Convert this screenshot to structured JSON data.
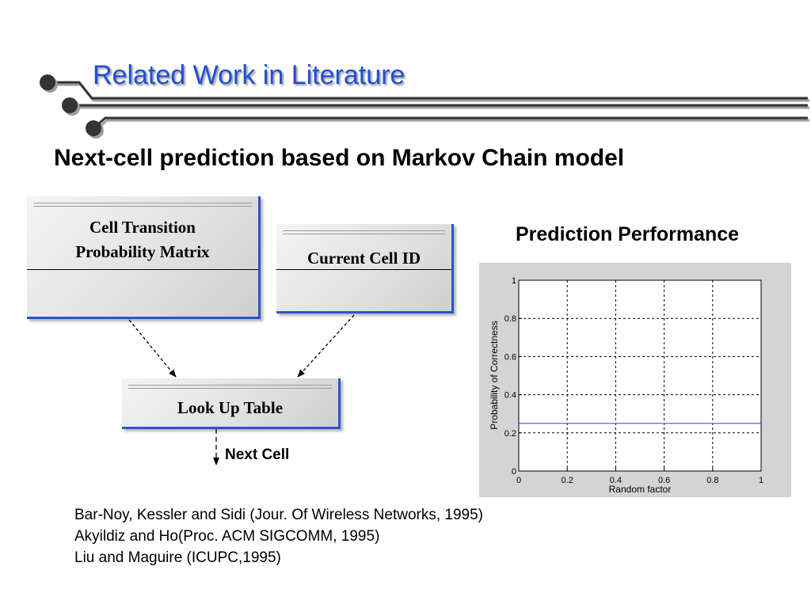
{
  "header": {
    "title": "Related Work in Literature"
  },
  "subtitle": "Next-cell prediction based on Markov Chain model",
  "diagram": {
    "matrix_box": {
      "line1": "Cell Transition",
      "line2": "Probability Matrix"
    },
    "current_cell_box": {
      "label": "Current Cell ID"
    },
    "lookup_box": {
      "label": "Look Up Table"
    },
    "output_label": "Next Cell"
  },
  "chart_title": "Prediction Performance",
  "chart_data": {
    "type": "line",
    "xlabel": "Random factor",
    "ylabel": "Probability of Correctness",
    "xlim": [
      0,
      1
    ],
    "ylim": [
      0,
      1
    ],
    "x_ticks": [
      "0",
      "0.2",
      "0.4",
      "0.6",
      "0.8",
      "1"
    ],
    "y_ticks": [
      "0",
      "0.2",
      "0.4",
      "0.6",
      "0.8",
      "1"
    ],
    "grid": true,
    "series": [
      {
        "x": [
          0,
          0.2,
          0.4,
          0.6,
          0.8,
          1
        ],
        "values": [
          0.25,
          0.25,
          0.25,
          0.25,
          0.25,
          0.25
        ],
        "color": "#4a6fe0"
      }
    ]
  },
  "references": [
    "Bar-Noy, Kessler and Sidi (Jour. Of Wireless Networks, 1995)",
    "Akyildiz and Ho(Proc. ACM SIGCOMM, 1995)",
    "Liu and Maguire (ICUPC,1995)"
  ],
  "colors": {
    "title": "#1f4fd4",
    "box_border": "#2a55c9",
    "deco_line": "#333333"
  }
}
